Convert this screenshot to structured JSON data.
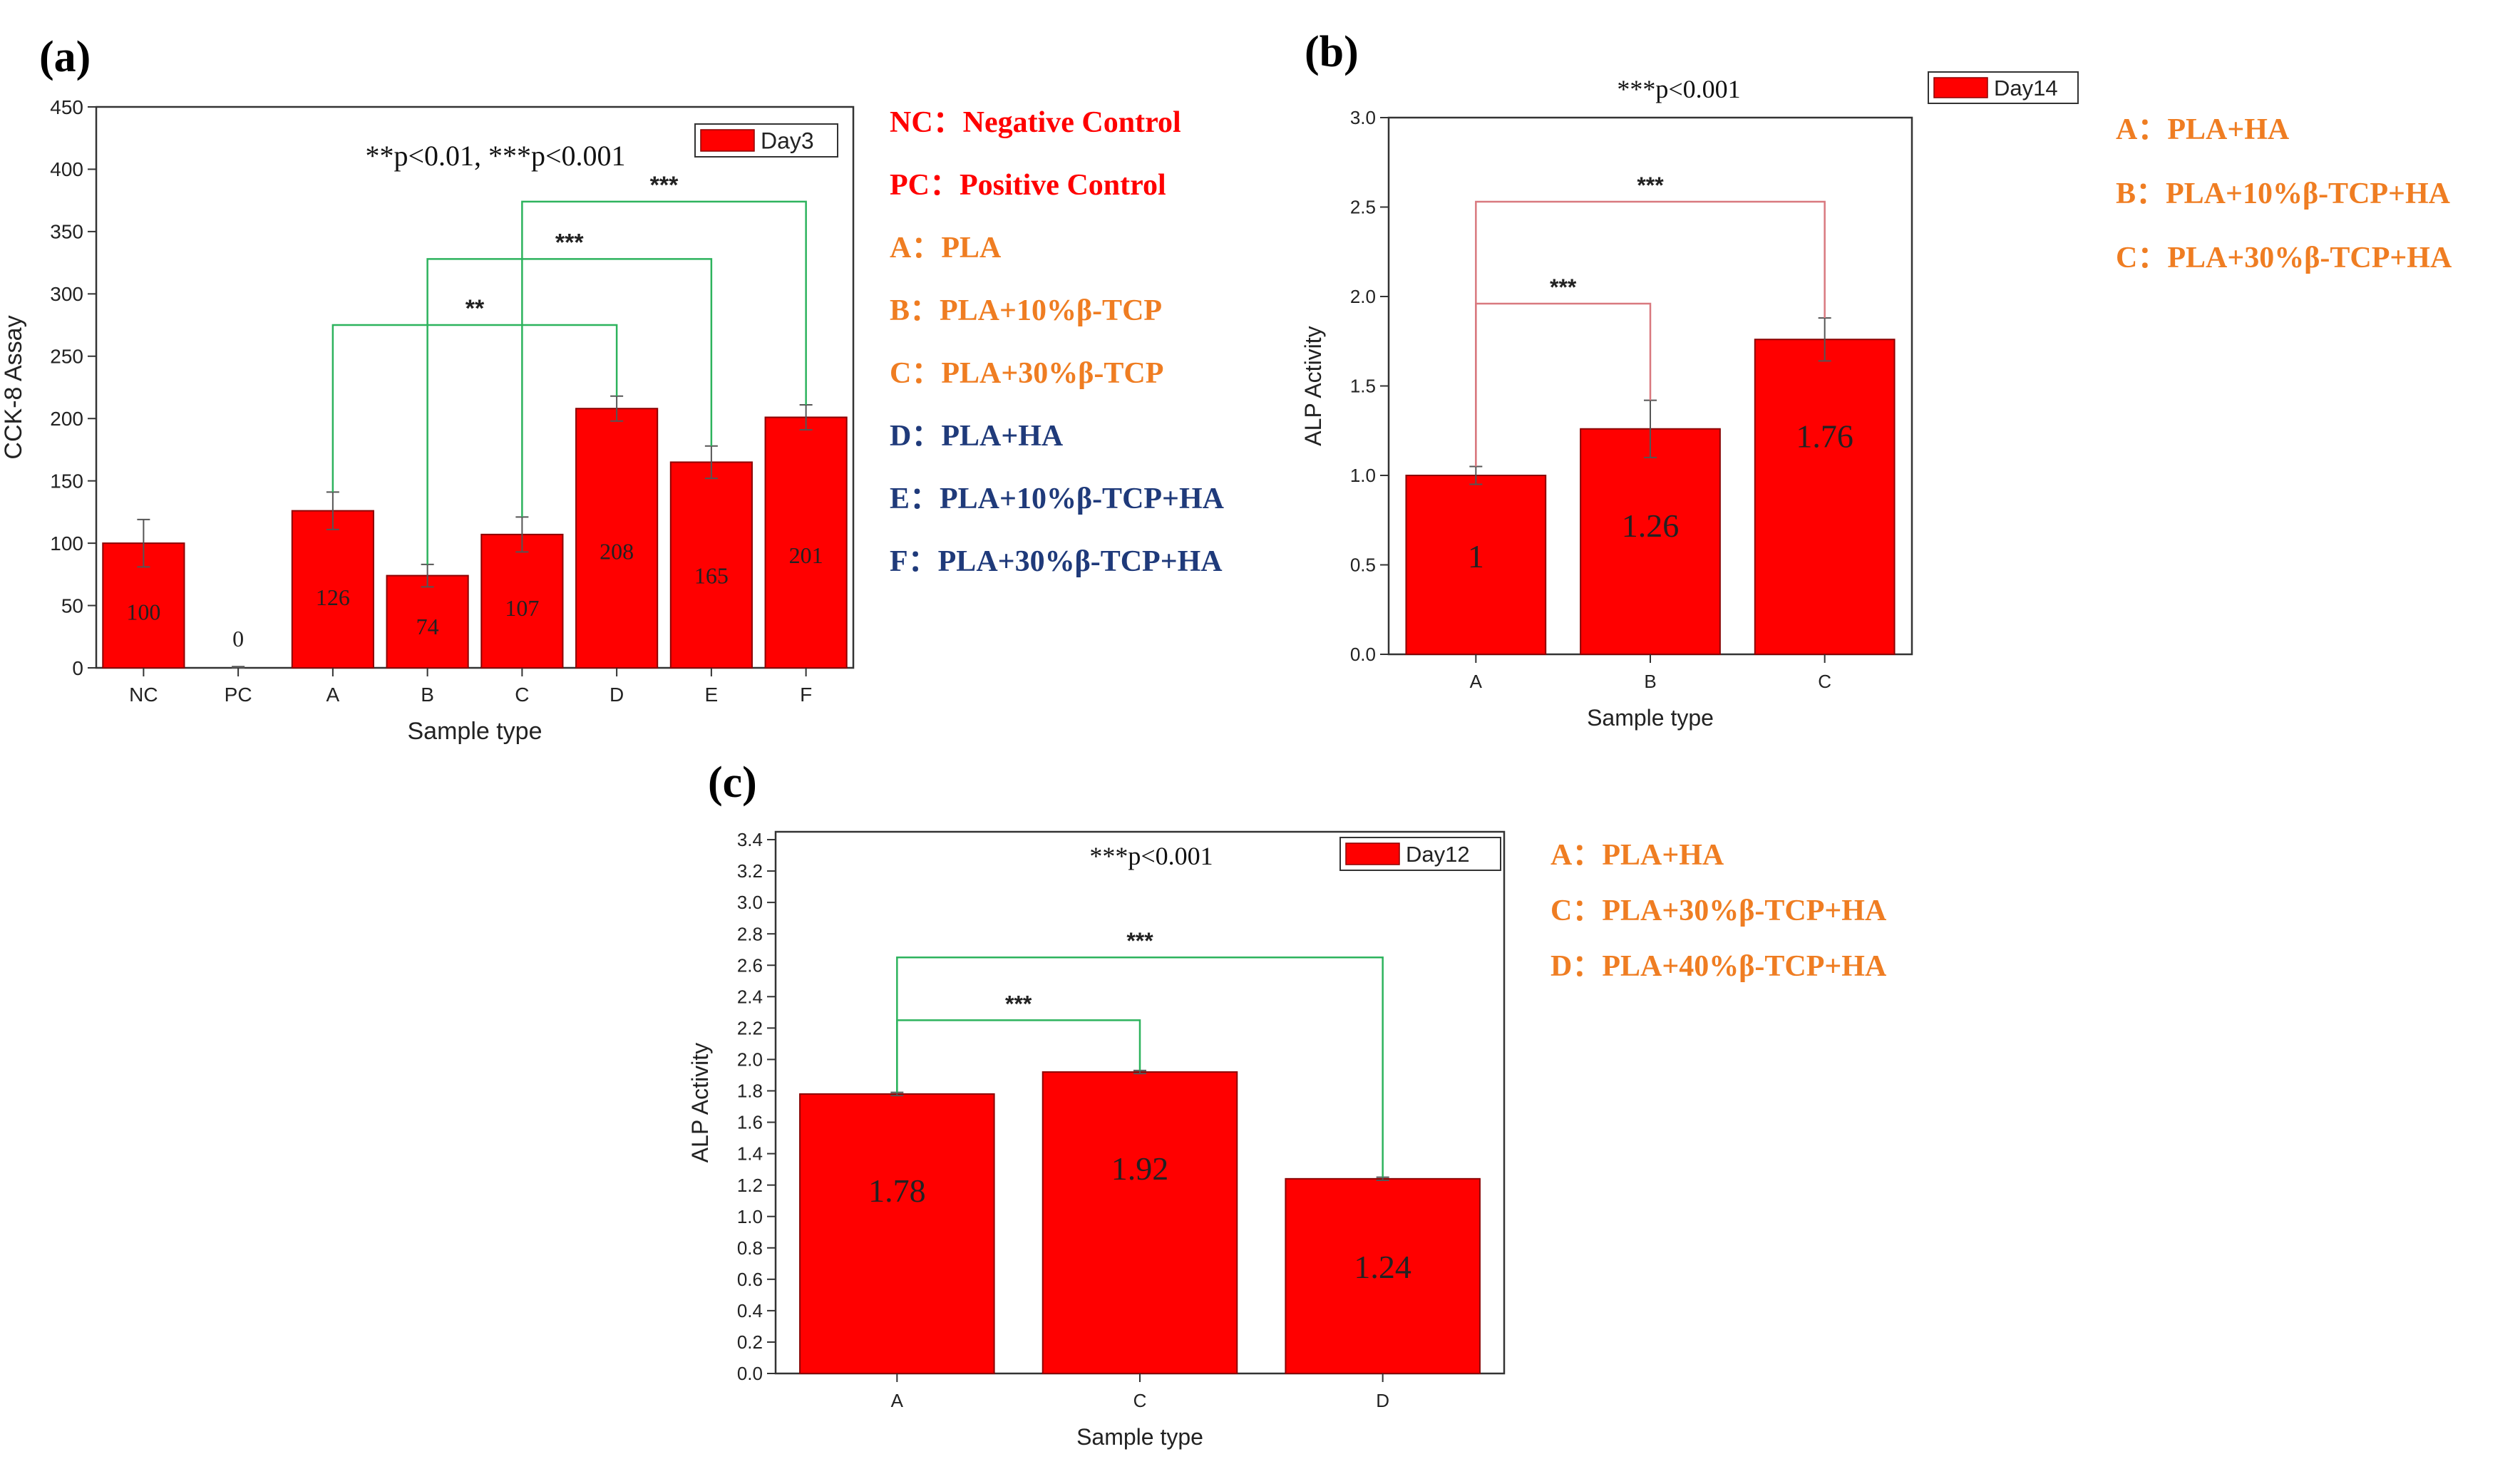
{
  "colors": {
    "bar": "#ff0000",
    "bar_edge": "#8b0000",
    "sig_green": "#2db35d",
    "sig_red": "#d9797f",
    "legend_red": "#ff0000",
    "legend_orange": "#ef7d22",
    "legend_navy": "#1f3a7a",
    "text": "#111111"
  },
  "chart_data": [
    {
      "id": "a",
      "type": "bar",
      "panel_label": "(a)",
      "title": "",
      "xlabel": "Sample type",
      "ylabel": "CCK-8 Assay",
      "ylim": [
        0,
        450
      ],
      "yticks": [
        "0",
        "50",
        "100",
        "150",
        "200",
        "250",
        "300",
        "350",
        "400",
        "450"
      ],
      "categories": [
        "NC",
        "PC",
        "A",
        "B",
        "C",
        "D",
        "E",
        "F"
      ],
      "values": [
        100,
        0,
        126,
        74,
        107,
        208,
        165,
        201
      ],
      "value_labels": [
        "100",
        "0",
        "126",
        "74",
        "107",
        "208",
        "165",
        "201"
      ],
      "errors": [
        19,
        1,
        15,
        9,
        14,
        10,
        13,
        10
      ],
      "series_name": "Day3",
      "significance_note": "**p<0.01, ***p<0.001",
      "brackets": [
        {
          "from": "A",
          "to": "D",
          "label": "**",
          "level": 275
        },
        {
          "from": "B",
          "to": "E",
          "label": "***",
          "level": 328
        },
        {
          "from": "C",
          "to": "F",
          "label": "***",
          "level": 374
        }
      ],
      "key": [
        {
          "text": "NC：Negative Control",
          "color": "legend_red"
        },
        {
          "text": "PC：Positive Control",
          "color": "legend_red"
        },
        {
          "text": "A：PLA",
          "color": "legend_orange"
        },
        {
          "text": "B：PLA+10%β-TCP",
          "color": "legend_orange"
        },
        {
          "text": "C：PLA+30%β-TCP",
          "color": "legend_orange"
        },
        {
          "text": "D：PLA+HA",
          "color": "legend_navy"
        },
        {
          "text": "E：PLA+10%β-TCP+HA",
          "color": "legend_navy"
        },
        {
          "text": "F：PLA+30%β-TCP+HA",
          "color": "legend_navy"
        }
      ]
    },
    {
      "id": "b",
      "type": "bar",
      "panel_label": "(b)",
      "title": "",
      "xlabel": "Sample type",
      "ylabel": "ALP Activity",
      "ylim": [
        0,
        3.0
      ],
      "yticks": [
        "0.0",
        "0.5",
        "1.0",
        "1.5",
        "2.0",
        "2.5",
        "3.0"
      ],
      "categories": [
        "A",
        "B",
        "C"
      ],
      "values": [
        1.0,
        1.26,
        1.76
      ],
      "value_labels": [
        "1",
        "1.26",
        "1.76"
      ],
      "errors": [
        0.05,
        0.16,
        0.12
      ],
      "series_name": "Day14",
      "significance_note": "***p<0.001",
      "brackets": [
        {
          "from": "A",
          "to": "B",
          "label": "***",
          "level": 1.96
        },
        {
          "from": "A",
          "to": "C",
          "label": "***",
          "level": 2.53
        }
      ],
      "key": [
        {
          "text": "A：PLA+HA",
          "color": "legend_orange"
        },
        {
          "text": "B：PLA+10%β-TCP+HA",
          "color": "legend_orange"
        },
        {
          "text": "C：PLA+30%β-TCP+HA",
          "color": "legend_orange"
        }
      ]
    },
    {
      "id": "c",
      "type": "bar",
      "panel_label": "(c)",
      "title": "",
      "xlabel": "Sample type",
      "ylabel": "ALP Activity",
      "ylim": [
        0,
        3.45
      ],
      "yticks": [
        "0.0",
        "0.2",
        "0.4",
        "0.6",
        "0.8",
        "1.0",
        "1.2",
        "1.4",
        "1.6",
        "1.8",
        "2.0",
        "2.2",
        "2.4",
        "2.6",
        "2.8",
        "3.0",
        "3.2",
        "3.4"
      ],
      "categories": [
        "A",
        "C",
        "D"
      ],
      "values": [
        1.78,
        1.92,
        1.24
      ],
      "value_labels": [
        "1.78",
        "1.92",
        "1.24"
      ],
      "errors": [
        0.01,
        0.01,
        0.01
      ],
      "series_name": "Day12",
      "significance_note": "***p<0.001",
      "brackets": [
        {
          "from": "A",
          "to": "C",
          "label": "***",
          "level": 2.25
        },
        {
          "from": "A",
          "to": "D",
          "label": "***",
          "level": 2.65
        }
      ],
      "key": [
        {
          "text": "A：PLA+HA",
          "color": "legend_orange"
        },
        {
          "text": "C：PLA+30%β-TCP+HA",
          "color": "legend_orange"
        },
        {
          "text": "D：PLA+40%β-TCP+HA",
          "color": "legend_orange"
        }
      ]
    }
  ]
}
